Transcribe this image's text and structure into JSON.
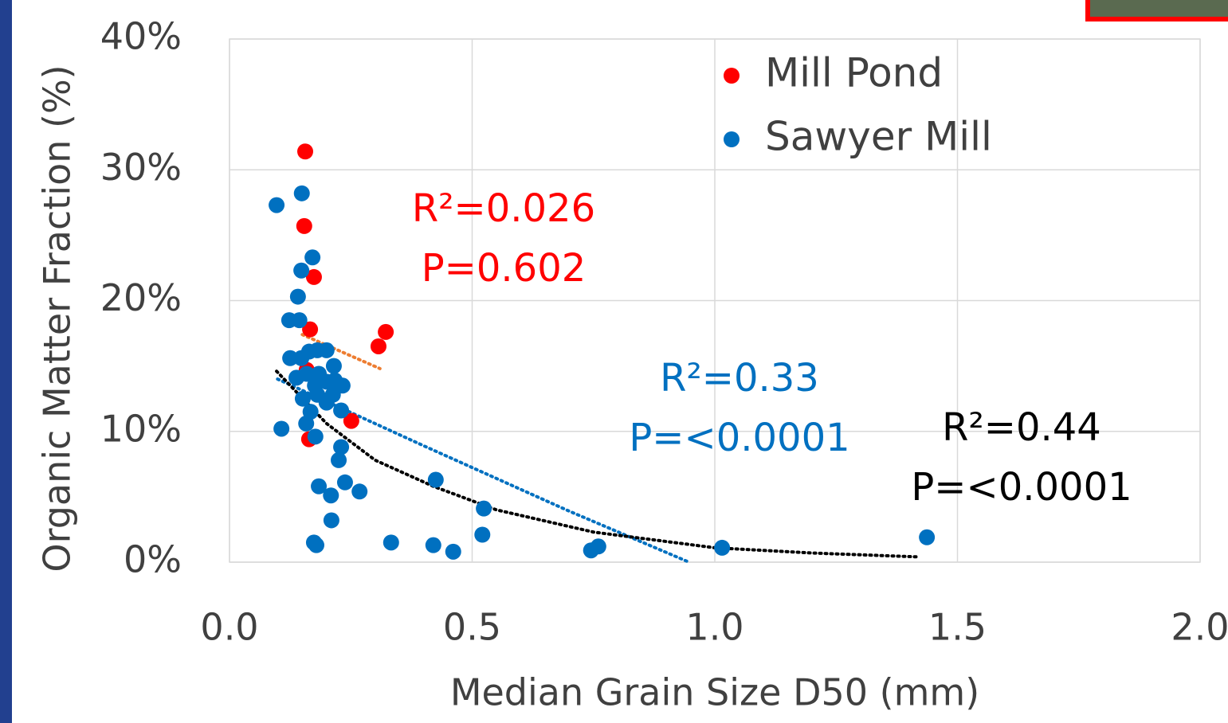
{
  "chart_data": {
    "type": "scatter",
    "x_label": "Median Grain Size D50 (mm)",
    "y_label": "Organic Matter Fraction (%)",
    "xlim": [
      0,
      2
    ],
    "ylim": [
      0,
      40
    ],
    "xticks": [
      {
        "value": 0,
        "label": "0.0"
      },
      0.5,
      {
        "value": 1,
        "label": "1.0"
      },
      1.5,
      {
        "value": 2,
        "label": "2.0"
      }
    ],
    "yticks": [
      {
        "value": 0,
        "label": "0%"
      },
      {
        "value": 10,
        "label": "10%"
      },
      {
        "value": 20,
        "label": "20%"
      },
      {
        "value": 30,
        "label": "30%"
      },
      {
        "value": 40,
        "label": "40%"
      }
    ],
    "grid": true,
    "legend": "top-right",
    "series": [
      {
        "name": "Mill Pond",
        "color": "#ff0000",
        "x": [
          0.156,
          0.154,
          0.174,
          0.166,
          0.322,
          0.307,
          0.251,
          0.164,
          0.159
        ],
        "y": [
          31.4,
          25.7,
          21.8,
          17.8,
          17.6,
          16.5,
          10.8,
          9.4,
          14.7
        ]
      },
      {
        "name": "Sawyer Mill",
        "color": "#0070c0",
        "x": [
          0.097,
          0.149,
          0.171,
          0.148,
          0.141,
          0.123,
          0.144,
          0.125,
          0.148,
          0.164,
          0.181,
          0.2,
          0.215,
          0.138,
          0.159,
          0.184,
          0.176,
          0.2,
          0.217,
          0.233,
          0.151,
          0.181,
          0.2,
          0.213,
          0.167,
          0.23,
          0.158,
          0.107,
          0.177,
          0.23,
          0.225,
          0.184,
          0.238,
          0.268,
          0.209,
          0.21,
          0.425,
          0.524,
          0.521,
          0.174,
          0.179,
          0.333,
          0.42,
          0.461,
          0.745,
          0.76,
          1.015,
          1.437
        ],
        "y": [
          27.3,
          28.2,
          23.3,
          22.3,
          20.3,
          18.5,
          18.5,
          15.6,
          15.6,
          16.1,
          16.2,
          16.2,
          15.0,
          14.1,
          14.4,
          14.4,
          13.5,
          13.8,
          13.9,
          13.5,
          12.5,
          12.8,
          12.2,
          12.8,
          11.5,
          11.6,
          10.6,
          10.2,
          9.6,
          8.8,
          7.8,
          5.8,
          6.1,
          5.4,
          5.1,
          3.2,
          6.3,
          4.1,
          2.1,
          1.5,
          1.3,
          1.5,
          1.3,
          0.8,
          0.9,
          1.2,
          1.1,
          1.9
        ]
      }
    ],
    "trendlines": [
      {
        "color": "#ed7d31",
        "x": [
          0.15,
          0.31
        ],
        "y": [
          17.4,
          14.8
        ]
      },
      {
        "color": "#0070c0",
        "x": [
          0.099,
          0.4,
          0.7,
          0.947
        ],
        "y": [
          14.0,
          8.9,
          3.9,
          0
        ]
      },
      {
        "color": "#000000",
        "x": [
          0.097,
          0.2,
          0.3,
          0.42,
          0.55,
          0.75,
          1.0,
          1.2,
          1.42
        ],
        "y": [
          14.6,
          10.6,
          7.8,
          5.8,
          4.0,
          2.3,
          1.1,
          0.7,
          0.4
        ]
      }
    ],
    "annotations": [
      {
        "color": "#ff0000",
        "lines": [
          "R²=0.026",
          "P=0.602"
        ]
      },
      {
        "color": "#0070c0",
        "lines": [
          "R²=0.33",
          "P=<0.0001"
        ]
      },
      {
        "color": "#000000",
        "lines": [
          "R²=0.44",
          "P=<0.0001"
        ]
      }
    ]
  }
}
